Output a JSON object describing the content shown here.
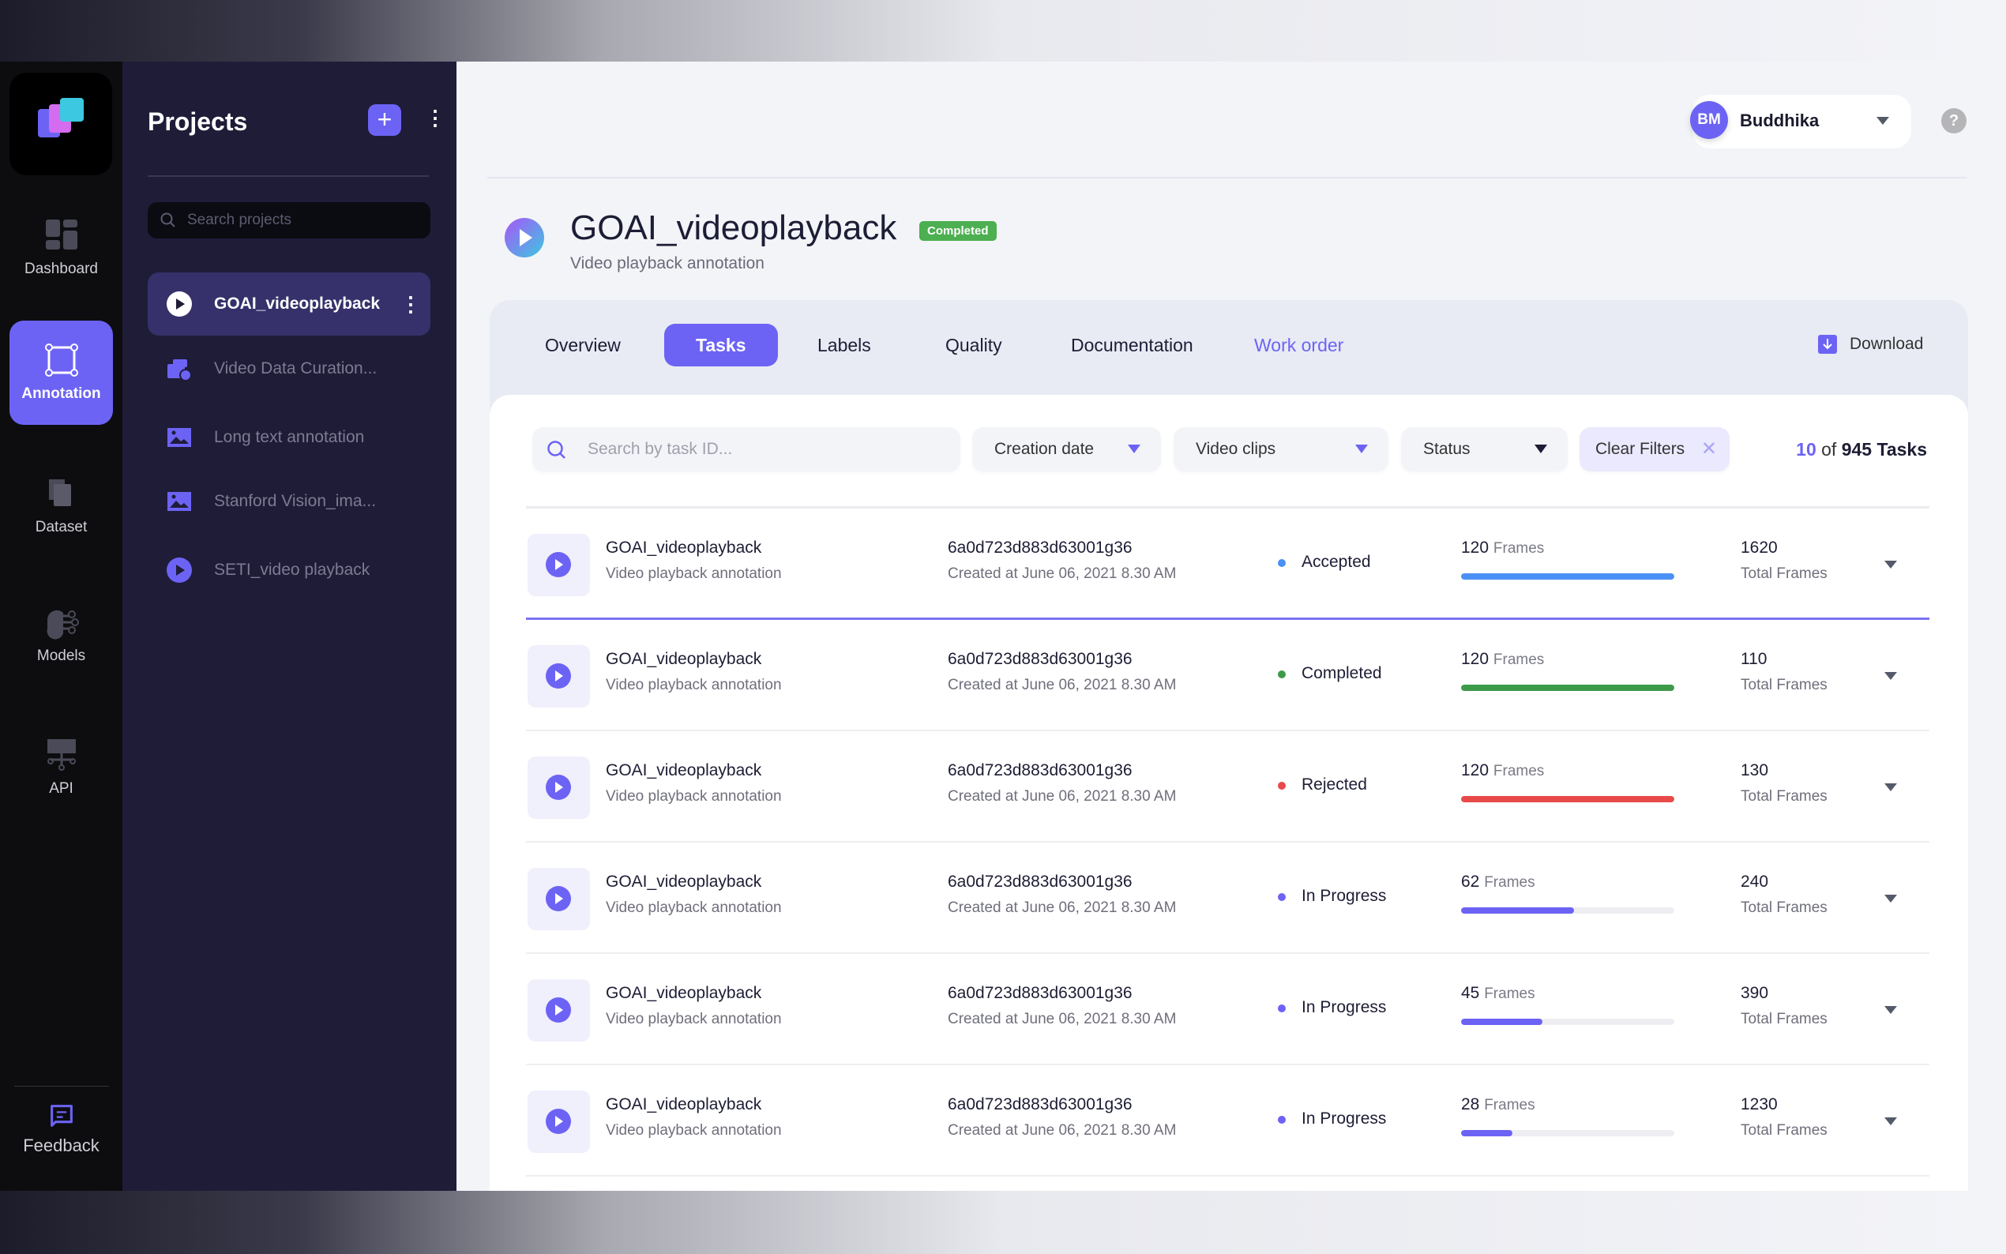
{
  "rail": {
    "items": [
      {
        "label": "Dashboard"
      },
      {
        "label": "Annotation"
      },
      {
        "label": "Dataset"
      },
      {
        "label": "Models"
      },
      {
        "label": "API"
      }
    ],
    "feedback": "Feedback",
    "active": "Annotation"
  },
  "projects": {
    "title": "Projects",
    "search_placeholder": "Search projects",
    "items": [
      {
        "label": "GOAI_videoplayback",
        "icon": "play-icon",
        "active": true
      },
      {
        "label": "Video Data Curation...",
        "icon": "video-curation-icon"
      },
      {
        "label": "Long text annotation",
        "icon": "image-icon"
      },
      {
        "label": "Stanford Vision_ima...",
        "icon": "image-icon"
      },
      {
        "label": "SETI_video playback",
        "icon": "play-icon"
      }
    ]
  },
  "user": {
    "initials": "BM",
    "name": "Buddhika"
  },
  "help": "?",
  "project": {
    "title": "GOAI_videoplayback",
    "badge": "Completed",
    "subtitle": "Video playback annotation"
  },
  "tabs": [
    {
      "label": "Overview"
    },
    {
      "label": "Tasks"
    },
    {
      "label": "Labels"
    },
    {
      "label": "Quality"
    },
    {
      "label": "Documentation"
    },
    {
      "label": "Work order"
    }
  ],
  "download": "Download",
  "filters": {
    "search_placeholder": "Search by task ID...",
    "creation_date": "Creation date",
    "video_clips": "Video clips",
    "status": "Status",
    "clear": "Clear Filters"
  },
  "count": {
    "shown": "10",
    "of": "of",
    "total": "945 Tasks"
  },
  "colors": {
    "accent": "#6c63f5",
    "accepted": "#4a90f5",
    "completed": "#3c9a48",
    "rejected": "#e84a4a",
    "in_progress": "#6c63f5"
  },
  "tasks": [
    {
      "name": "GOAI_videoplayback",
      "desc": "Video playback annotation",
      "id": "6a0d723d883d63001g36",
      "created": "Created at June 06, 2021 8.30 AM",
      "status": "Accepted",
      "frames": "120",
      "frames_label": "Frames",
      "progress": 100,
      "total": "1620",
      "total_label": "Total Frames",
      "color": "#4a90f5"
    },
    {
      "name": "GOAI_videoplayback",
      "desc": "Video playback annotation",
      "id": "6a0d723d883d63001g36",
      "created": "Created at June 06, 2021 8.30 AM",
      "status": "Completed",
      "frames": "120",
      "frames_label": "Frames",
      "progress": 100,
      "total": "110",
      "total_label": "Total Frames",
      "color": "#3c9a48"
    },
    {
      "name": "GOAI_videoplayback",
      "desc": "Video playback annotation",
      "id": "6a0d723d883d63001g36",
      "created": "Created at June 06, 2021 8.30 AM",
      "status": "Rejected",
      "frames": "120",
      "frames_label": "Frames",
      "progress": 100,
      "total": "130",
      "total_label": "Total Frames",
      "color": "#e84a4a"
    },
    {
      "name": "GOAI_videoplayback",
      "desc": "Video playback annotation",
      "id": "6a0d723d883d63001g36",
      "created": "Created at June 06, 2021 8.30 AM",
      "status": "In Progress",
      "frames": "62",
      "frames_label": "Frames",
      "progress": 53,
      "total": "240",
      "total_label": "Total Frames",
      "color": "#6c63f5"
    },
    {
      "name": "GOAI_videoplayback",
      "desc": "Video playback annotation",
      "id": "6a0d723d883d63001g36",
      "created": "Created at June 06, 2021 8.30 AM",
      "status": "In Progress",
      "frames": "45",
      "frames_label": "Frames",
      "progress": 38,
      "total": "390",
      "total_label": "Total Frames",
      "color": "#6c63f5"
    },
    {
      "name": "GOAI_videoplayback",
      "desc": "Video playback annotation",
      "id": "6a0d723d883d63001g36",
      "created": "Created at June 06, 2021 8.30 AM",
      "status": "In Progress",
      "frames": "28",
      "frames_label": "Frames",
      "progress": 24,
      "total": "1230",
      "total_label": "Total Frames",
      "color": "#6c63f5"
    }
  ]
}
